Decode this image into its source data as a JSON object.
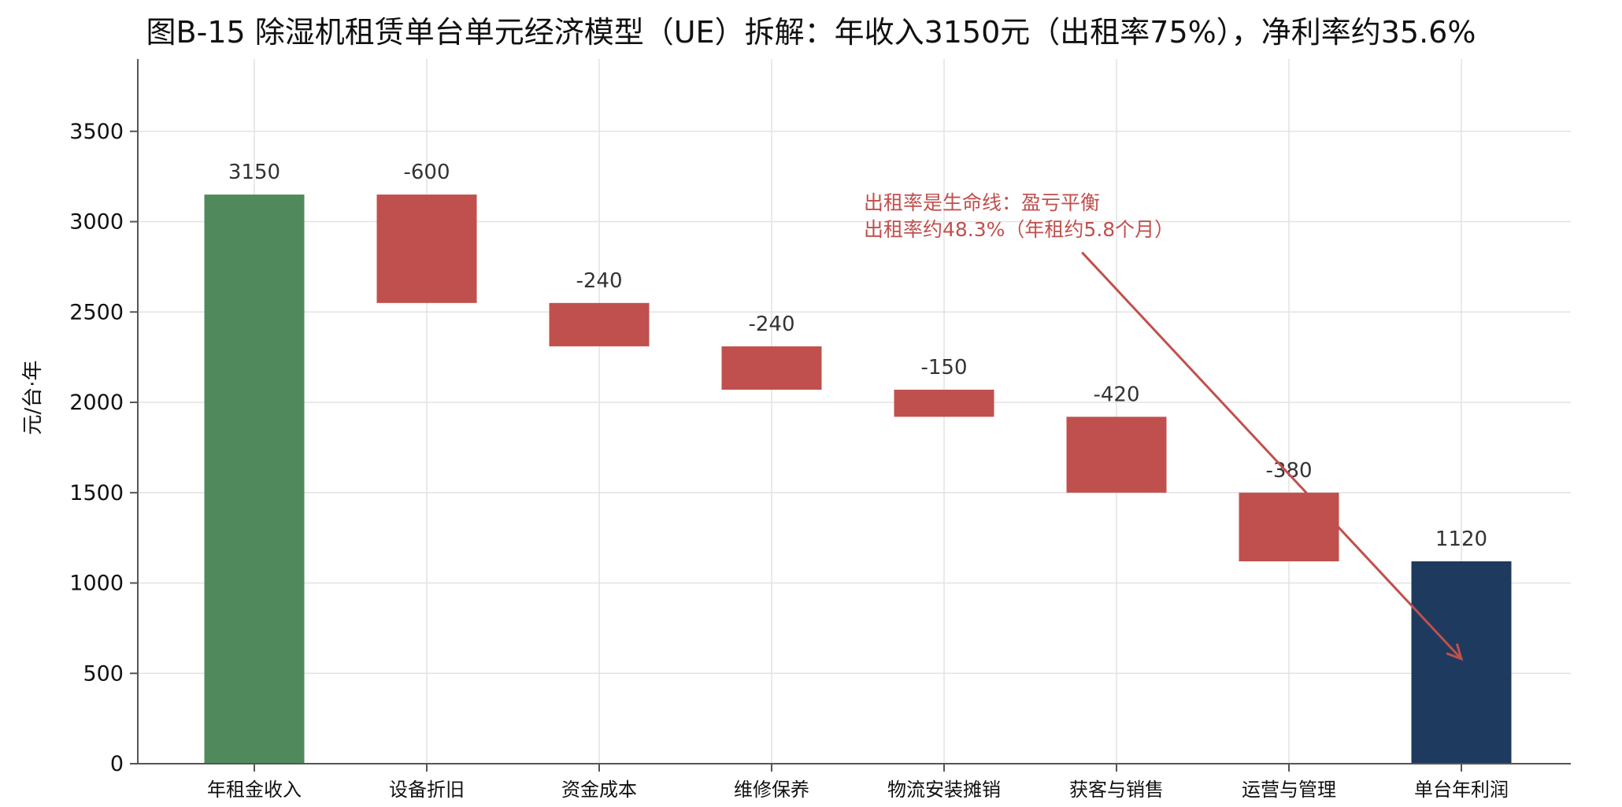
{
  "chart_data": {
    "type": "bar",
    "subtype": "waterfall",
    "title": "图B-15  除湿机租赁单台单元经济模型（UE）拆解：年收入3150元（出租率75%），净利率约35.6%",
    "xlabel": "",
    "ylabel": "元/台·年",
    "ylim": [
      0,
      3900
    ],
    "yticks": [
      0,
      500,
      1000,
      1500,
      2000,
      2500,
      3000,
      3500
    ],
    "grid": true,
    "categories": [
      "年租金收入",
      "设备折旧",
      "资金成本",
      "维修保养",
      "物流安装摊销",
      "获客与销售",
      "运营与管理",
      "单台年利润"
    ],
    "bars": [
      {
        "category": "年租金收入",
        "kind": "total",
        "bottom": 0,
        "top": 3150,
        "label": "3150"
      },
      {
        "category": "设备折旧",
        "kind": "decrease",
        "bottom": 2550,
        "top": 3150,
        "label": "-600"
      },
      {
        "category": "资金成本",
        "kind": "decrease",
        "bottom": 2310,
        "top": 2550,
        "label": "-240"
      },
      {
        "category": "维修保养",
        "kind": "decrease",
        "bottom": 2070,
        "top": 2310,
        "label": "-240"
      },
      {
        "category": "物流安装摊销",
        "kind": "decrease",
        "bottom": 1920,
        "top": 2070,
        "label": "-150"
      },
      {
        "category": "获客与销售",
        "kind": "decrease",
        "bottom": 1500,
        "top": 1920,
        "label": "-420"
      },
      {
        "category": "运营与管理",
        "kind": "decrease",
        "bottom": 1120,
        "top": 1500,
        "label": "-380"
      },
      {
        "category": "单台年利润",
        "kind": "result",
        "bottom": 0,
        "top": 1120,
        "label": "1120"
      }
    ],
    "colors": {
      "total": "#508a5c",
      "decrease": "#c0504d",
      "result": "#1f3a5f",
      "grid": "#e3e3e3",
      "axis": "#555555",
      "annotation": "#c0504d"
    },
    "annotation": {
      "lines": [
        "出租率是生命线：盈亏平衡",
        "出租率约48.3%（年租约5.8个月）"
      ],
      "arrow_from": {
        "category_index": 4.8,
        "value": 2830
      },
      "arrow_to": {
        "category_index": 7.0,
        "value": 580
      }
    }
  }
}
